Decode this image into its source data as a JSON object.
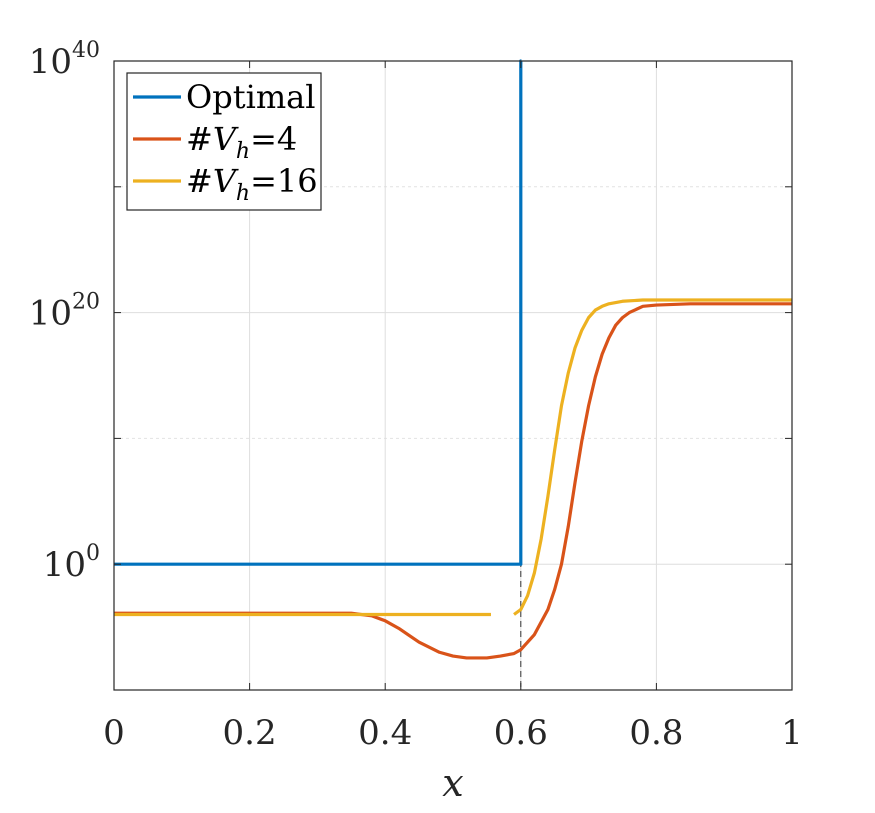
{
  "chart_data": {
    "type": "line",
    "title": "",
    "xlabel": "x",
    "ylabel": "",
    "xlim": [
      0,
      1
    ],
    "ylim_log10": [
      -10,
      40
    ],
    "yscale": "log",
    "grid": true,
    "minor_grid": true,
    "legend_position": "top-left",
    "x_ticks": [
      0,
      0.2,
      0.4,
      0.6,
      0.8,
      1
    ],
    "x_tick_labels": [
      "0",
      "0.2",
      "0.4",
      "0.6",
      "0.8",
      "1"
    ],
    "y_ticks_log10": [
      0,
      20,
      40
    ],
    "y_tick_labels": [
      {
        "base": "10",
        "exp": "0"
      },
      {
        "base": "10",
        "exp": "20"
      },
      {
        "base": "10",
        "exp": "40"
      }
    ],
    "vertical_dashed_line_x": 0.6,
    "series": [
      {
        "name": "Optimal",
        "legend_parts": {
          "text": "Optimal"
        },
        "color": "#0072BD",
        "x": [
          0,
          0.6,
          0.6,
          0.601,
          0.601
        ],
        "log10_y": [
          0,
          0,
          40,
          40,
          40
        ]
      },
      {
        "name": "#V_h=4",
        "legend_parts": {
          "prefix": "#",
          "var": "V",
          "sub": "h",
          "suffix": "=4"
        },
        "color": "#D95319",
        "x": [
          0,
          0.1,
          0.2,
          0.3,
          0.35,
          0.38,
          0.4,
          0.42,
          0.45,
          0.48,
          0.5,
          0.52,
          0.55,
          0.57,
          0.59,
          0.6,
          0.62,
          0.64,
          0.65,
          0.66,
          0.67,
          0.68,
          0.69,
          0.7,
          0.71,
          0.72,
          0.73,
          0.74,
          0.75,
          0.76,
          0.78,
          0.8,
          0.85,
          0.9,
          1.0
        ],
        "log10_y": [
          -3.9,
          -3.9,
          -3.9,
          -3.9,
          -3.9,
          -4.1,
          -4.5,
          -5.1,
          -6.2,
          -7.0,
          -7.3,
          -7.45,
          -7.45,
          -7.3,
          -7.1,
          -6.8,
          -5.6,
          -3.6,
          -2.0,
          0.0,
          3.0,
          6.5,
          9.8,
          12.6,
          14.9,
          16.7,
          18.0,
          19.0,
          19.6,
          20.0,
          20.5,
          20.6,
          20.7,
          20.7,
          20.7
        ]
      },
      {
        "name": "#V_h=16",
        "legend_parts": {
          "prefix": "#",
          "var": "V",
          "sub": "h",
          "suffix": "=16"
        },
        "color": "#EDB120",
        "segments": [
          {
            "x": [
              0,
              0.1,
              0.2,
              0.3,
              0.4,
              0.5,
              0.556
            ],
            "log10_y": [
              -4.0,
              -4.0,
              -4.0,
              -4.0,
              -4.0,
              -4.0,
              -4.0
            ]
          },
          {
            "x": [
              0.59,
              0.6,
              0.61,
              0.62,
              0.63,
              0.64,
              0.65,
              0.66,
              0.67,
              0.68,
              0.69,
              0.7,
              0.71,
              0.72,
              0.73,
              0.75,
              0.78,
              0.8,
              0.85,
              0.9,
              1.0
            ],
            "log10_y": [
              -4.0,
              -3.6,
              -2.5,
              -0.7,
              2.0,
              5.4,
              9.1,
              12.6,
              15.2,
              17.2,
              18.6,
              19.6,
              20.2,
              20.5,
              20.7,
              20.9,
              21.0,
              21.0,
              21.0,
              21.0,
              21.0
            ]
          }
        ]
      }
    ]
  }
}
